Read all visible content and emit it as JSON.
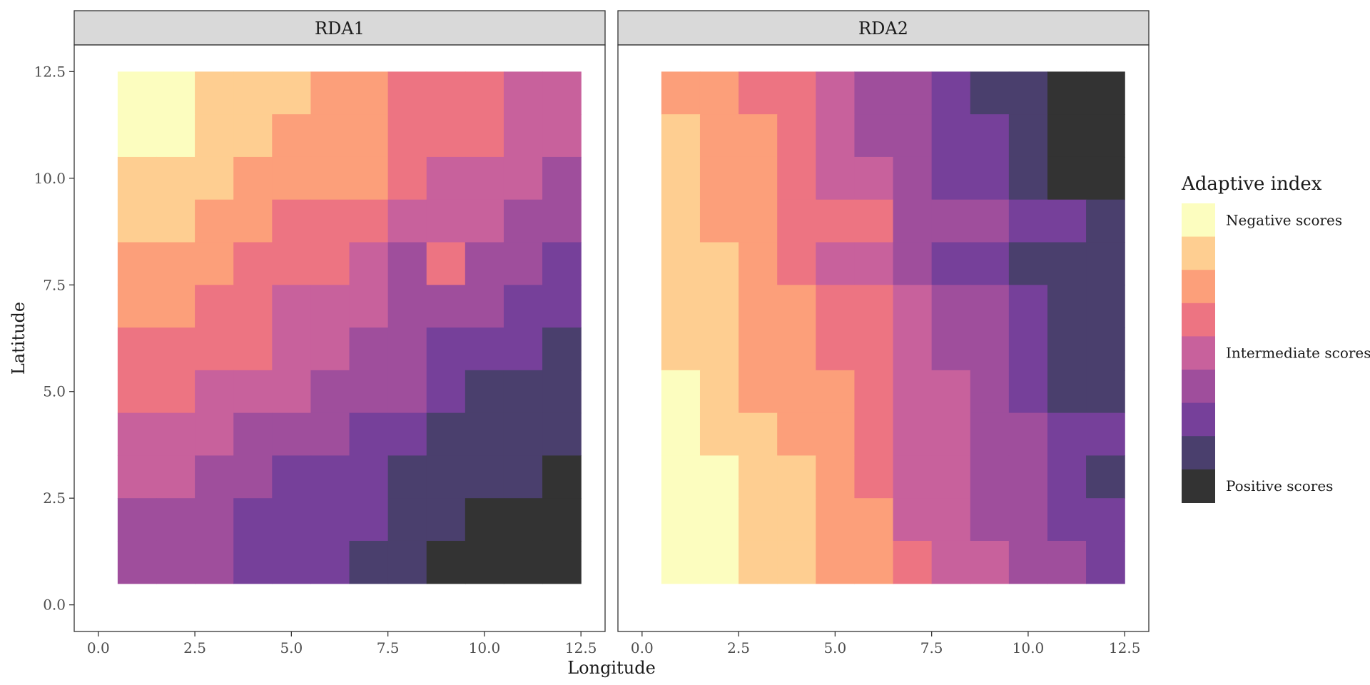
{
  "chart_data": {
    "type": "heatmap",
    "xlabel": "Longitude",
    "ylabel": "Latitude",
    "xlim": [
      0,
      12.5
    ],
    "ylim": [
      0,
      12.5
    ],
    "x_ticks": [
      "0.0",
      "2.5",
      "5.0",
      "7.5",
      "10.0",
      "12.5"
    ],
    "y_ticks": [
      "0.0",
      "2.5",
      "5.0",
      "7.5",
      "10.0",
      "12.5"
    ],
    "grid": false,
    "legend": {
      "title": "Adaptive index",
      "placement": "right",
      "colors": [
        "#FCFDBF",
        "#FECE91",
        "#FC9F7A",
        "#ED7482",
        "#C8619C",
        "#9F4E9C",
        "#76409A",
        "#4A3F6D",
        "#333333"
      ],
      "labels": [
        "Negative scores",
        "",
        "",
        "",
        "Intermediate scores",
        "",
        "",
        "",
        "Positive scores"
      ]
    },
    "x": [
      1,
      2,
      3,
      4,
      5,
      6,
      7,
      8,
      9,
      10,
      11,
      12
    ],
    "y": [
      12,
      11,
      10,
      9,
      8,
      7,
      6,
      5,
      4,
      3,
      2,
      1
    ],
    "panels": [
      {
        "name": "RDA1",
        "values": [
          [
            0,
            0,
            1,
            1,
            1,
            2,
            2,
            3,
            3,
            3,
            4,
            4
          ],
          [
            0,
            0,
            1,
            1,
            2,
            2,
            2,
            3,
            3,
            3,
            4,
            4
          ],
          [
            1,
            1,
            1,
            2,
            2,
            2,
            2,
            3,
            4,
            4,
            4,
            5
          ],
          [
            1,
            1,
            2,
            2,
            3,
            3,
            3,
            4,
            4,
            4,
            5,
            5
          ],
          [
            2,
            2,
            2,
            3,
            3,
            3,
            4,
            5,
            3,
            5,
            5,
            6
          ],
          [
            2,
            2,
            3,
            3,
            4,
            4,
            4,
            5,
            5,
            5,
            6,
            6
          ],
          [
            3,
            3,
            3,
            3,
            4,
            4,
            5,
            5,
            6,
            6,
            6,
            7
          ],
          [
            3,
            3,
            4,
            4,
            4,
            5,
            5,
            5,
            6,
            7,
            7,
            7
          ],
          [
            4,
            4,
            4,
            5,
            5,
            5,
            6,
            6,
            7,
            7,
            7,
            7
          ],
          [
            4,
            4,
            5,
            5,
            6,
            6,
            6,
            7,
            7,
            7,
            7,
            8
          ],
          [
            5,
            5,
            5,
            6,
            6,
            6,
            6,
            7,
            7,
            8,
            8,
            8
          ],
          [
            5,
            5,
            5,
            6,
            6,
            6,
            7,
            7,
            8,
            8,
            8,
            8
          ]
        ]
      },
      {
        "name": "RDA2",
        "values": [
          [
            2,
            2,
            3,
            3,
            4,
            5,
            5,
            6,
            7,
            7,
            8,
            8
          ],
          [
            1,
            2,
            2,
            3,
            4,
            5,
            5,
            6,
            6,
            7,
            8,
            8
          ],
          [
            1,
            2,
            2,
            3,
            4,
            4,
            5,
            6,
            6,
            7,
            8,
            8
          ],
          [
            1,
            2,
            2,
            3,
            3,
            3,
            5,
            5,
            5,
            6,
            6,
            7
          ],
          [
            1,
            1,
            2,
            3,
            4,
            4,
            5,
            6,
            6,
            7,
            7,
            7
          ],
          [
            1,
            1,
            2,
            2,
            3,
            3,
            4,
            5,
            5,
            6,
            7,
            7
          ],
          [
            1,
            1,
            2,
            2,
            3,
            3,
            4,
            5,
            5,
            6,
            7,
            7
          ],
          [
            0,
            1,
            2,
            2,
            2,
            3,
            4,
            4,
            5,
            6,
            7,
            7
          ],
          [
            0,
            1,
            1,
            2,
            2,
            3,
            4,
            4,
            5,
            5,
            6,
            6
          ],
          [
            0,
            0,
            1,
            1,
            2,
            3,
            4,
            4,
            5,
            5,
            6,
            7
          ],
          [
            0,
            0,
            1,
            1,
            2,
            2,
            4,
            4,
            5,
            5,
            6,
            6
          ],
          [
            0,
            0,
            1,
            1,
            2,
            2,
            3,
            4,
            4,
            5,
            5,
            6
          ]
        ]
      }
    ]
  }
}
